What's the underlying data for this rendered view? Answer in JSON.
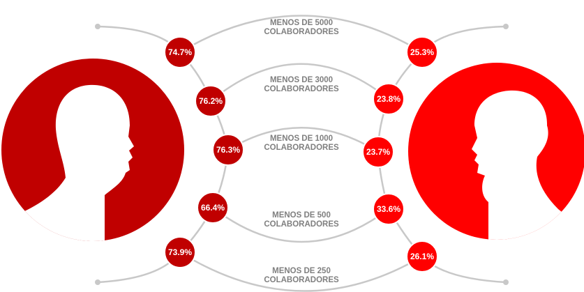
{
  "rows": [
    {
      "label": [
        "MENOS DE 5000",
        "COLABORADORES"
      ],
      "men": "74.7%",
      "women": "25.3%"
    },
    {
      "label": [
        "MENOS DE 3000",
        "COLABORADORES"
      ],
      "men": "76.2%",
      "women": "23.8%"
    },
    {
      "label": [
        "MENOS DE 1000",
        "COLABORADORES"
      ],
      "men": "76.3%",
      "women": "23.7%"
    },
    {
      "label": [
        "MENOS DE 500",
        "COLABORADORES"
      ],
      "men": "66.4%",
      "women": "33.6%"
    },
    {
      "label": [
        "MENOS DE 250",
        "COLABORADORES"
      ],
      "men": "73.9%",
      "women": "26.1%"
    }
  ]
}
